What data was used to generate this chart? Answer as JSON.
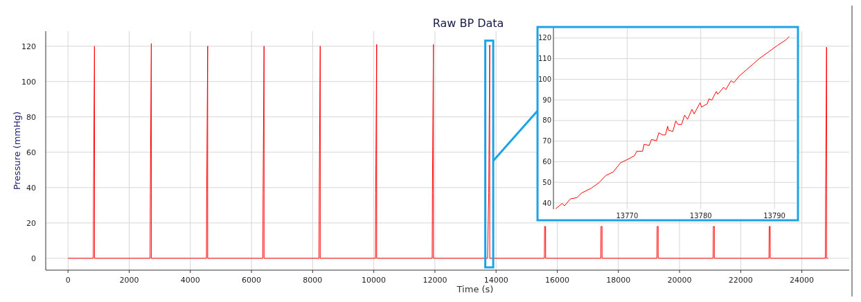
{
  "chart_data": [
    {
      "type": "line",
      "title": "Raw BP Data",
      "xlabel": "Time (s)",
      "ylabel": "Pressure (mmHg)",
      "color": "#ff0000",
      "x": [
        0,
        825,
        833,
        865,
        866,
        2683,
        2691,
        2723,
        2724,
        4527,
        4535,
        4567,
        4568,
        6371,
        6379,
        6411,
        6412,
        8208,
        8216,
        8248,
        8249,
        10054,
        10062,
        10094,
        10095,
        11910,
        11918,
        11950,
        11951,
        13720,
        13760,
        13792,
        13793,
        15579,
        15587,
        15620,
        15621,
        17425,
        17433,
        17466,
        17467,
        19261,
        19269,
        19302,
        19303,
        21098,
        21106,
        21139,
        21140,
        22925,
        22933,
        22966,
        22967,
        24769,
        24777,
        24809,
        24810,
        24860
      ],
      "values": [
        0,
        0,
        37,
        120,
        0,
        0,
        37,
        121.5,
        0,
        0,
        37,
        120,
        0,
        0,
        37,
        120,
        0,
        0,
        37,
        120,
        0,
        0,
        37,
        121,
        0,
        0,
        37,
        121,
        0,
        0,
        37,
        120.7,
        0,
        0,
        18,
        18,
        0,
        0,
        18,
        18,
        0,
        0,
        18,
        18,
        0,
        0,
        18,
        18,
        0,
        0,
        18,
        18,
        0,
        0,
        37,
        119.5,
        0,
        0
      ],
      "xlim": [
        -730,
        25550
      ],
      "ylim": [
        -6.7,
        128.5
      ],
      "xticks": [
        0,
        2000,
        4000,
        6000,
        8000,
        10000,
        12000,
        14000,
        16000,
        18000,
        20000,
        22000,
        24000
      ],
      "yticks": [
        0,
        20,
        40,
        60,
        80,
        100,
        120
      ],
      "grid": true
    },
    {
      "type": "line",
      "color": "#ff0000",
      "tick_labels": "xy",
      "x": [
        13760.3,
        13761.2,
        13761.5,
        13762.3,
        13763.2,
        13763.8,
        13765.1,
        13766.2,
        13767.1,
        13768.1,
        13769.1,
        13770.1,
        13771.0,
        13771.3,
        13772.1,
        13772.3,
        13773.0,
        13773.3,
        13774.0,
        13774.3,
        13774.8,
        13775.2,
        13775.5,
        13775.6,
        13776.2,
        13776.6,
        13776.9,
        13777.4,
        13777.8,
        13778.2,
        13778.8,
        13779.1,
        13779.9,
        13780.1,
        13780.9,
        13781.1,
        13781.5,
        13782.1,
        13782.3,
        13783.1,
        13783.4,
        13784.1,
        13784.5,
        13785.2,
        13786.2,
        13787.1,
        13788.0,
        13789.1,
        13790.4,
        13791.6,
        13792.0
      ],
      "values": [
        37.2,
        39.8,
        38.6,
        42,
        42.6,
        44.8,
        47.1,
        49.9,
        53.3,
        55,
        59.5,
        61.2,
        62.9,
        65.1,
        65.1,
        68.5,
        67.9,
        70.8,
        70.2,
        74.1,
        73,
        73,
        77.2,
        75.3,
        74.7,
        79.8,
        78.1,
        78.1,
        82.6,
        80.6,
        85.4,
        83.2,
        88.6,
        86.5,
        88.2,
        90.5,
        89.9,
        94.1,
        92.7,
        96.1,
        95,
        99.3,
        98.4,
        101.5,
        104.6,
        107.4,
        110.2,
        113,
        116.4,
        119.2,
        120.7
      ],
      "xlim": [
        13760,
        13793
      ],
      "ylim": [
        37,
        125
      ],
      "xticks": [
        13770,
        13780,
        13790
      ],
      "yticks": [
        40,
        50,
        60,
        70,
        80,
        90,
        100,
        110,
        120
      ],
      "grid": true
    }
  ]
}
